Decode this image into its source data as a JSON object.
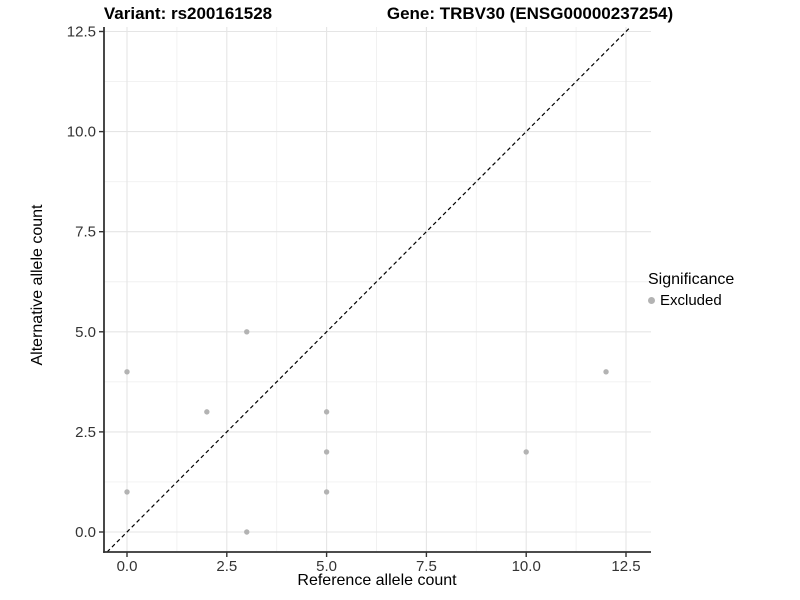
{
  "colors": {
    "point": "#b3b3b3",
    "grid_major": "#e5e5e5",
    "grid_minor": "#f0f0f0",
    "axis_line": "#333333",
    "axis_text": "#333333",
    "identity_line": "#000000",
    "background": "#ffffff"
  },
  "chart_data": {
    "type": "scatter",
    "title_left": "Variant: rs200161528",
    "title_right": "Gene: TRBV30 (ENSG00000237254)",
    "xlabel": "Reference allele count",
    "ylabel": "Alternative allele count",
    "xlim": [
      -0.58,
      13.13
    ],
    "ylim": [
      -0.5,
      12.61
    ],
    "x_ticks": [
      {
        "v": 0,
        "label": "0.0"
      },
      {
        "v": 2.5,
        "label": "2.5"
      },
      {
        "v": 5,
        "label": "5.0"
      },
      {
        "v": 7.5,
        "label": "7.5"
      },
      {
        "v": 10,
        "label": "10.0"
      },
      {
        "v": 12.5,
        "label": "12.5"
      }
    ],
    "y_ticks": [
      {
        "v": 0,
        "label": "0.0"
      },
      {
        "v": 2.5,
        "label": "2.5"
      },
      {
        "v": 5,
        "label": "5.0"
      },
      {
        "v": 7.5,
        "label": "7.5"
      },
      {
        "v": 10,
        "label": "10.0"
      },
      {
        "v": 12.5,
        "label": "12.5"
      }
    ],
    "x_minor": [
      1.25,
      3.75,
      6.25,
      8.75,
      11.25
    ],
    "y_minor": [
      1.25,
      3.75,
      6.25,
      8.75,
      11.25
    ],
    "grid": "major and minor, light gray, on white panel",
    "identity_line": {
      "slope": 1,
      "intercept": 0,
      "style": "dashed"
    },
    "series": [
      {
        "name": "Excluded",
        "color": "#b3b3b3",
        "points": [
          [
            0,
            1
          ],
          [
            0,
            4
          ],
          [
            2,
            3
          ],
          [
            3,
            0
          ],
          [
            3,
            5
          ],
          [
            5,
            1
          ],
          [
            5,
            2
          ],
          [
            5,
            3
          ],
          [
            10,
            2
          ],
          [
            12,
            4
          ]
        ]
      }
    ],
    "legend": {
      "title": "Significance",
      "position": "right",
      "items": [
        {
          "label": "Excluded",
          "color": "#b3b3b3"
        }
      ]
    }
  }
}
